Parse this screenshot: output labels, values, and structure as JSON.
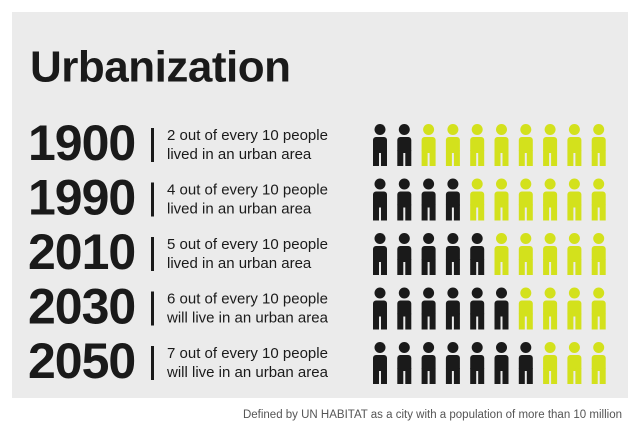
{
  "chart_data": {
    "type": "pictogram",
    "title": "Urbanization",
    "categories": [
      "1900",
      "1990",
      "2010",
      "2030",
      "2050"
    ],
    "descriptions": [
      [
        "2 out of every 10 people",
        "lived in an urban area"
      ],
      [
        "4 out of every 10 people",
        "lived in an urban area"
      ],
      [
        "5 out of every 10 people",
        "lived in an urban area"
      ],
      [
        "6 out of every 10 people",
        "will live in an urban area"
      ],
      [
        "7 out of every 10 people",
        "will live in an urban area"
      ]
    ],
    "values": [
      2,
      4,
      5,
      6,
      7
    ],
    "total": 10,
    "color": "#1a1a1a",
    "empty_color": "#d3e11c",
    "note": "Defined by UN HABITAT as a city with a population of more than 10 million"
  }
}
